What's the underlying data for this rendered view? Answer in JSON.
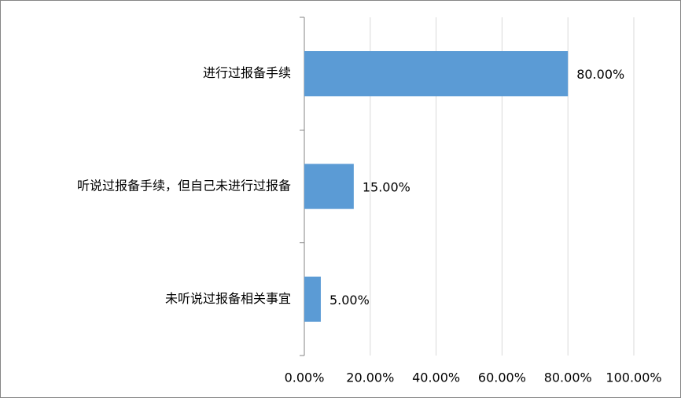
{
  "chart_data": {
    "type": "bar",
    "orientation": "horizontal",
    "categories": [
      "进行过报备手续",
      "听说过报备手续，但自己未进行过报备",
      "未听说过报备相关事宜"
    ],
    "values": [
      80,
      15,
      5
    ],
    "value_labels": [
      "80.00%",
      "15.00%",
      "5.00%"
    ],
    "color": "#5b9bd5",
    "xlim": [
      0,
      100
    ],
    "xticks": [
      {
        "value": 0,
        "label": "0.00%"
      },
      {
        "value": 20,
        "label": "20.00%"
      },
      {
        "value": 40,
        "label": "40.00%"
      },
      {
        "value": 60,
        "label": "60.00%"
      },
      {
        "value": 80,
        "label": "80.00%"
      },
      {
        "value": 100,
        "label": "100.00%"
      }
    ],
    "grid": true
  }
}
